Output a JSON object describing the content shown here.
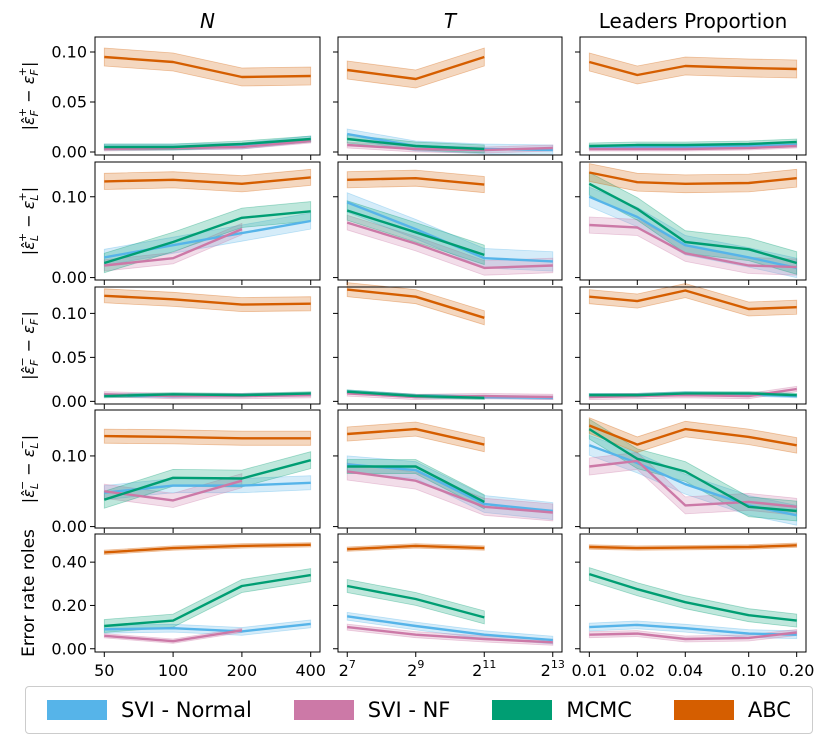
{
  "colors": {
    "svi_normal": "#56b4e9",
    "svi_nf": "#cc79a7",
    "mcmc": "#009e73",
    "abc": "#d55e00"
  },
  "legend": {
    "items": [
      {
        "label": "SVI - Normal",
        "color_key": "svi_normal"
      },
      {
        "label": "SVI - NF",
        "color_key": "svi_nf"
      },
      {
        "label": "MCMC",
        "color_key": "mcmc"
      },
      {
        "label": "ABC",
        "color_key": "abc"
      }
    ]
  },
  "chart_data": {
    "type": "line",
    "columns": [
      {
        "title": "N",
        "title_italic": true,
        "x": [
          50,
          100,
          200,
          400
        ],
        "tick_labels": [
          "50",
          "100",
          "200",
          "400"
        ]
      },
      {
        "title": "T",
        "title_italic": true,
        "x": [
          128,
          512,
          2048,
          8192
        ],
        "tick_labels": [
          {
            "base": "2",
            "exp": "7"
          },
          {
            "base": "2",
            "exp": "9"
          },
          {
            "base": "2",
            "exp": "11"
          },
          {
            "base": "2",
            "exp": "13"
          }
        ]
      },
      {
        "title": "Leaders Proportion",
        "title_italic": false,
        "x": [
          0.01,
          0.02,
          0.04,
          0.1,
          0.2
        ],
        "tick_labels": [
          "0.01",
          "0.02",
          "0.04",
          "0.10",
          "0.20"
        ]
      }
    ],
    "rows": [
      {
        "ylabel_pre": "|",
        "ylabel_hat_base": "ε",
        "ylabel_sub": "F",
        "ylabel_sup": "+",
        "ylabel_rest_sup": "+",
        "ylabel_rest_sub": "F",
        "ylim": [
          -0.003,
          0.115
        ],
        "yticks": [
          0.0,
          0.05,
          0.1
        ],
        "yticklabels": [
          "0.00",
          "0.05",
          "0.10"
        ]
      },
      {
        "ylabel_pre": "|",
        "ylabel_hat_base": "ε",
        "ylabel_sub": "L",
        "ylabel_sup": "+",
        "ylabel_rest_sup": "+",
        "ylabel_rest_sub": "L",
        "ylim": [
          -0.003,
          0.143
        ],
        "yticks": [
          0.0,
          0.1
        ],
        "yticklabels": [
          "0.00",
          "0.10"
        ]
      },
      {
        "ylabel_pre": "|",
        "ylabel_hat_base": "ε",
        "ylabel_sub": "F",
        "ylabel_sup": "−",
        "ylabel_rest_sup": "−",
        "ylabel_rest_sub": "F",
        "ylim": [
          -0.003,
          0.13
        ],
        "yticks": [
          0.0,
          0.05,
          0.1
        ],
        "yticklabels": [
          "0.00",
          "0.05",
          "0.10"
        ]
      },
      {
        "ylabel_pre": "|",
        "ylabel_hat_base": "ε",
        "ylabel_sub": "L",
        "ylabel_sup": "−",
        "ylabel_rest_sup": "−",
        "ylabel_rest_sub": "L",
        "ylim": [
          -0.002,
          0.165
        ],
        "yticks": [
          0.0,
          0.1
        ],
        "yticklabels": [
          "0.00",
          "0.10"
        ]
      },
      {
        "ylabel_text": "Error rate roles",
        "ylim": [
          -0.015,
          0.53
        ],
        "yticks": [
          0.0,
          0.2,
          0.4
        ],
        "yticklabels": [
          "0.00",
          "0.20",
          "0.40"
        ]
      }
    ],
    "panels": [
      [
        {
          "series": [
            {
              "key": "svi_normal",
              "values": [
                0.005,
                0.005,
                0.006,
                0.013
              ],
              "band": 0.003
            },
            {
              "key": "svi_nf",
              "values": [
                0.003,
                0.004,
                0.005,
                0.011
              ],
              "band": 0.002
            },
            {
              "key": "mcmc",
              "values": [
                0.005,
                0.005,
                0.008,
                0.013
              ],
              "band": 0.003
            },
            {
              "key": "abc",
              "values": [
                0.095,
                0.09,
                0.075,
                0.076
              ],
              "band": 0.009
            }
          ]
        },
        {
          "series": [
            {
              "key": "svi_normal",
              "values": [
                0.018,
                0.006,
                0.003,
                0.002
              ],
              "band": 0.005
            },
            {
              "key": "svi_nf",
              "values": [
                0.007,
                0.003,
                0.002,
                0.004
              ],
              "band": 0.003
            },
            {
              "key": "mcmc",
              "values": [
                0.013,
                0.006,
                0.003
              ],
              "band": 0.004
            },
            {
              "key": "abc",
              "values": [
                0.082,
                0.073,
                0.095
              ],
              "band": 0.009
            }
          ]
        },
        {
          "series": [
            {
              "key": "svi_normal",
              "values": [
                0.005,
                0.005,
                0.005,
                0.006,
                0.007
              ],
              "band": 0.002
            },
            {
              "key": "svi_nf",
              "values": [
                0.003,
                0.003,
                0.003,
                0.004,
                0.006
              ],
              "band": 0.002
            },
            {
              "key": "mcmc",
              "values": [
                0.006,
                0.007,
                0.007,
                0.008,
                0.01
              ],
              "band": 0.003
            },
            {
              "key": "abc",
              "values": [
                0.09,
                0.077,
                0.086,
                0.084,
                0.083
              ],
              "band": 0.009
            }
          ]
        }
      ],
      [
        {
          "series": [
            {
              "key": "svi_normal",
              "values": [
                0.025,
                0.04,
                0.055,
                0.07
              ],
              "band": 0.01
            },
            {
              "key": "svi_nf",
              "values": [
                0.015,
                0.024,
                0.06
              ],
              "band": 0.007
            },
            {
              "key": "mcmc",
              "values": [
                0.018,
                0.044,
                0.074,
                0.082
              ],
              "band": 0.012
            },
            {
              "key": "abc",
              "values": [
                0.119,
                0.121,
                0.116,
                0.124
              ],
              "band": 0.01
            }
          ]
        },
        {
          "series": [
            {
              "key": "svi_normal",
              "values": [
                0.093,
                0.06,
                0.024,
                0.02
              ],
              "band": 0.012
            },
            {
              "key": "svi_nf",
              "values": [
                0.068,
                0.042,
                0.012,
                0.015
              ],
              "band": 0.009
            },
            {
              "key": "mcmc",
              "values": [
                0.083,
                0.056,
                0.028
              ],
              "band": 0.012
            },
            {
              "key": "abc",
              "values": [
                0.121,
                0.123,
                0.115
              ],
              "band": 0.01
            }
          ]
        },
        {
          "series": [
            {
              "key": "svi_normal",
              "values": [
                0.1,
                0.075,
                0.04,
                0.025,
                0.012
              ],
              "band": 0.012
            },
            {
              "key": "svi_nf",
              "values": [
                0.065,
                0.062,
                0.03,
                0.015,
                0.013
              ],
              "band": 0.01
            },
            {
              "key": "mcmc",
              "values": [
                0.116,
                0.085,
                0.044,
                0.035,
                0.018
              ],
              "band": 0.014
            },
            {
              "key": "abc",
              "values": [
                0.13,
                0.118,
                0.116,
                0.117,
                0.123
              ],
              "band": 0.011
            }
          ]
        }
      ],
      [
        {
          "series": [
            {
              "key": "svi_normal",
              "values": [
                0.007,
                0.006,
                0.007,
                0.008
              ],
              "band": 0.002
            },
            {
              "key": "svi_nf",
              "values": [
                0.008,
                0.006,
                0.006,
                0.007
              ],
              "band": 0.003
            },
            {
              "key": "mcmc",
              "values": [
                0.006,
                0.008,
                0.007,
                0.009
              ],
              "band": 0.002
            },
            {
              "key": "abc",
              "values": [
                0.12,
                0.116,
                0.11,
                0.111
              ],
              "band": 0.008
            }
          ]
        },
        {
          "series": [
            {
              "key": "svi_normal",
              "values": [
                0.011,
                0.006,
                0.005,
                0.004
              ],
              "band": 0.002
            },
            {
              "key": "svi_nf",
              "values": [
                0.009,
                0.005,
                0.006,
                0.005
              ],
              "band": 0.003
            },
            {
              "key": "mcmc",
              "values": [
                0.011,
                0.006,
                0.004
              ],
              "band": 0.002
            },
            {
              "key": "abc",
              "values": [
                0.127,
                0.119,
                0.095
              ],
              "band": 0.008
            }
          ]
        },
        {
          "series": [
            {
              "key": "svi_normal",
              "values": [
                0.007,
                0.007,
                0.009,
                0.008,
                0.006
              ],
              "band": 0.002
            },
            {
              "key": "svi_nf",
              "values": [
                0.005,
                0.006,
                0.007,
                0.006,
                0.014
              ],
              "band": 0.003
            },
            {
              "key": "mcmc",
              "values": [
                0.007,
                0.007,
                0.009,
                0.009,
                0.007
              ],
              "band": 0.002
            },
            {
              "key": "abc",
              "values": [
                0.119,
                0.114,
                0.126,
                0.105,
                0.107
              ],
              "band": 0.008
            }
          ]
        }
      ],
      [
        {
          "series": [
            {
              "key": "svi_normal",
              "values": [
                0.048,
                0.058,
                0.058,
                0.062
              ],
              "band": 0.01
            },
            {
              "key": "svi_nf",
              "values": [
                0.05,
                0.037,
                0.065
              ],
              "band": 0.01
            },
            {
              "key": "mcmc",
              "values": [
                0.038,
                0.069,
                0.068,
                0.094
              ],
              "band": 0.012
            },
            {
              "key": "abc",
              "values": [
                0.128,
                0.127,
                0.125,
                0.125
              ],
              "band": 0.01
            }
          ]
        },
        {
          "series": [
            {
              "key": "svi_normal",
              "values": [
                0.088,
                0.08,
                0.032,
                0.022
              ],
              "band": 0.012
            },
            {
              "key": "svi_nf",
              "values": [
                0.078,
                0.065,
                0.028,
                0.02
              ],
              "band": 0.012
            },
            {
              "key": "mcmc",
              "values": [
                0.085,
                0.085,
                0.035
              ],
              "band": 0.01
            },
            {
              "key": "abc",
              "values": [
                0.131,
                0.138,
                0.116
              ],
              "band": 0.01
            }
          ]
        },
        {
          "series": [
            {
              "key": "svi_normal",
              "values": [
                0.115,
                0.09,
                0.06,
                0.03,
                0.016
              ],
              "band": 0.014
            },
            {
              "key": "svi_nf",
              "values": [
                0.085,
                0.093,
                0.03,
                0.035,
                0.028
              ],
              "band": 0.012
            },
            {
              "key": "mcmc",
              "values": [
                0.138,
                0.096,
                0.078,
                0.028,
                0.022
              ],
              "band": 0.014
            },
            {
              "key": "abc",
              "values": [
                0.143,
                0.116,
                0.138,
                0.127,
                0.115
              ],
              "band": 0.011
            }
          ]
        }
      ],
      [
        {
          "series": [
            {
              "key": "svi_normal",
              "values": [
                0.09,
                0.095,
                0.08,
                0.115
              ],
              "band": 0.018
            },
            {
              "key": "svi_nf",
              "values": [
                0.06,
                0.035,
                0.085
              ],
              "band": 0.01
            },
            {
              "key": "mcmc",
              "values": [
                0.105,
                0.13,
                0.29,
                0.34
              ],
              "band": 0.03
            },
            {
              "key": "abc",
              "values": [
                0.445,
                0.465,
                0.475,
                0.48
              ],
              "band": 0.01
            }
          ]
        },
        {
          "series": [
            {
              "key": "svi_normal",
              "values": [
                0.15,
                0.105,
                0.065,
                0.04
              ],
              "band": 0.018
            },
            {
              "key": "svi_nf",
              "values": [
                0.1,
                0.065,
                0.045,
                0.03
              ],
              "band": 0.014
            },
            {
              "key": "mcmc",
              "values": [
                0.29,
                0.23,
                0.145
              ],
              "band": 0.03
            },
            {
              "key": "abc",
              "values": [
                0.46,
                0.475,
                0.465
              ],
              "band": 0.01
            }
          ]
        },
        {
          "series": [
            {
              "key": "svi_normal",
              "values": [
                0.1,
                0.11,
                0.095,
                0.07,
                0.065
              ],
              "band": 0.018
            },
            {
              "key": "svi_nf",
              "values": [
                0.065,
                0.07,
                0.045,
                0.05,
                0.075
              ],
              "band": 0.014
            },
            {
              "key": "mcmc",
              "values": [
                0.345,
                0.275,
                0.215,
                0.155,
                0.13
              ],
              "band": 0.03
            },
            {
              "key": "abc",
              "values": [
                0.47,
                0.465,
                0.467,
                0.47,
                0.478
              ],
              "band": 0.01
            }
          ]
        }
      ]
    ]
  }
}
